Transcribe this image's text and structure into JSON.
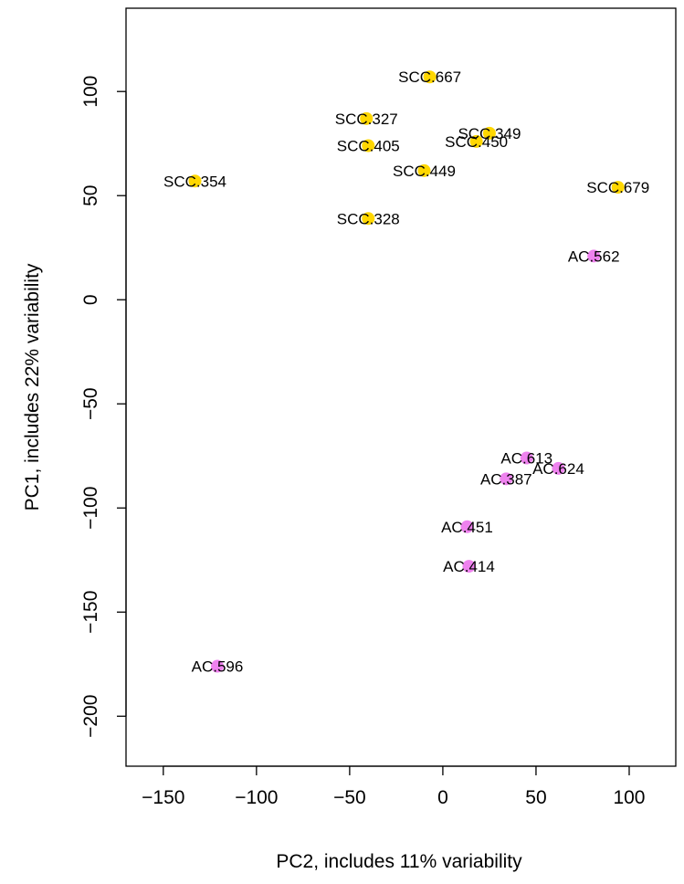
{
  "chart_data": {
    "type": "scatter",
    "xlabel": "PC2, includes 11% variability",
    "ylabel": "PC1, includes 22% variability",
    "xlim": [
      -170,
      125
    ],
    "ylim": [
      -224,
      140
    ],
    "xticks": [
      "−150",
      "−100",
      "−50",
      "0",
      "50",
      "100"
    ],
    "yticks": [
      "−200",
      "−150",
      "−100",
      "−50",
      "0",
      "50",
      "100"
    ],
    "xtick_values": [
      -150,
      -100,
      -50,
      0,
      50,
      100
    ],
    "ytick_values": [
      -200,
      -150,
      -100,
      -50,
      0,
      50,
      100
    ],
    "grid": false,
    "colors": {
      "SCC": "#FFD700",
      "AC": "#EE82EE"
    },
    "points": [
      {
        "label": "SCC.667",
        "x": -7,
        "y": 107,
        "group": "SCC"
      },
      {
        "label": "SCC.327",
        "x": -41,
        "y": 87,
        "group": "SCC"
      },
      {
        "label": "SCC.349",
        "x": 25,
        "y": 80,
        "group": "SCC"
      },
      {
        "label": "SCC.450",
        "x": 18,
        "y": 76,
        "group": "SCC"
      },
      {
        "label": "SCC.405",
        "x": -40,
        "y": 74,
        "group": "SCC"
      },
      {
        "label": "SCC.449",
        "x": -10,
        "y": 62,
        "group": "SCC"
      },
      {
        "label": "SCC.354",
        "x": -133,
        "y": 57,
        "group": "SCC"
      },
      {
        "label": "SCC.679",
        "x": 94,
        "y": 54,
        "group": "SCC"
      },
      {
        "label": "SCC.328",
        "x": -40,
        "y": 39,
        "group": "SCC"
      },
      {
        "label": "AC.562",
        "x": 81,
        "y": 21,
        "group": "AC"
      },
      {
        "label": "AC.613",
        "x": 45,
        "y": -76,
        "group": "AC"
      },
      {
        "label": "AC.624",
        "x": 62,
        "y": -81,
        "group": "AC"
      },
      {
        "label": "AC.387",
        "x": 34,
        "y": -86,
        "group": "AC"
      },
      {
        "label": "AC.451",
        "x": 13,
        "y": -109,
        "group": "AC"
      },
      {
        "label": "AC.414",
        "x": 14,
        "y": -128,
        "group": "AC"
      },
      {
        "label": "AC.596",
        "x": -121,
        "y": -176,
        "group": "AC"
      }
    ]
  }
}
